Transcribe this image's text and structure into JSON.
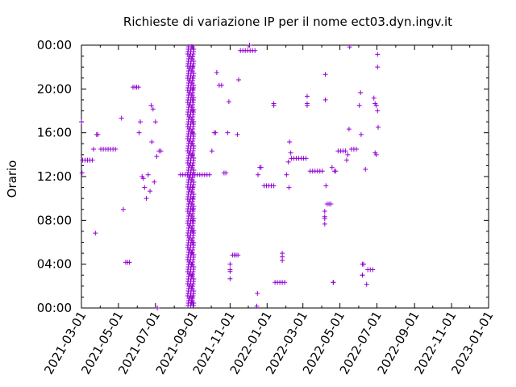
{
  "chart_data": {
    "type": "scatter",
    "title": "Richieste di variazione IP per il nome ect03.dyn.ingv.it",
    "xlabel": "",
    "ylabel": "Orario",
    "x_type": "date",
    "xlim": [
      "2021-03-01",
      "2023-01-01"
    ],
    "ylim": [
      "00:00",
      "24:00"
    ],
    "x_ticks": [
      "2021-03-01",
      "2021-05-01",
      "2021-07-01",
      "2021-09-01",
      "2021-11-01",
      "2022-01-01",
      "2022-03-01",
      "2022-05-01",
      "2022-07-01",
      "2022-09-01",
      "2022-11-01",
      "2023-01-01"
    ],
    "y_ticks": [
      "00:00",
      "04:00",
      "08:00",
      "12:00",
      "16:00",
      "20:00",
      "00:00"
    ],
    "grid": false,
    "legend": "none",
    "marker": "+",
    "colors": {
      "points": "#9400d3",
      "axes": "#000000",
      "background": "#ffffff"
    },
    "points": [
      [
        "2021-03-01",
        "17:00"
      ],
      [
        "2021-03-02",
        "12:20"
      ],
      [
        "2021-03-03",
        "13:30"
      ],
      [
        "2021-03-07",
        "13:30"
      ],
      [
        "2021-03-11",
        "13:30"
      ],
      [
        "2021-03-15",
        "13:30"
      ],
      [
        "2021-03-19",
        "13:30"
      ],
      [
        "2021-03-21",
        "14:30"
      ],
      [
        "2021-03-24",
        "06:50"
      ],
      [
        "2021-03-26",
        "15:50"
      ],
      [
        "2021-03-28",
        "15:50"
      ],
      [
        "2021-04-02",
        "14:30"
      ],
      [
        "2021-04-06",
        "14:30"
      ],
      [
        "2021-04-10",
        "14:30"
      ],
      [
        "2021-04-14",
        "14:30"
      ],
      [
        "2021-04-18",
        "14:30"
      ],
      [
        "2021-04-22",
        "14:30"
      ],
      [
        "2021-04-26",
        "14:30"
      ],
      [
        "2021-05-06",
        "17:20"
      ],
      [
        "2021-05-09",
        "09:00"
      ],
      [
        "2021-05-13",
        "04:10"
      ],
      [
        "2021-05-16",
        "04:10"
      ],
      [
        "2021-05-19",
        "04:10"
      ],
      [
        "2021-05-25",
        "20:10"
      ],
      [
        "2021-05-28",
        "20:10"
      ],
      [
        "2021-05-31",
        "20:10"
      ],
      [
        "2021-06-03",
        "20:10"
      ],
      [
        "2021-06-04",
        "16:00"
      ],
      [
        "2021-06-06",
        "17:00"
      ],
      [
        "2021-06-09",
        "12:00"
      ],
      [
        "2021-06-11",
        "11:50"
      ],
      [
        "2021-06-13",
        "11:00"
      ],
      [
        "2021-06-16",
        "10:00"
      ],
      [
        "2021-06-19",
        "12:10"
      ],
      [
        "2021-06-22",
        "10:40"
      ],
      [
        "2021-06-24",
        "17:90"
      ],
      [
        "2021-06-25",
        "14:70"
      ],
      [
        "2021-06-27",
        "17:70"
      ],
      [
        "2021-06-29",
        "11:30"
      ],
      [
        "2021-07-01",
        "17:00"
      ],
      [
        "2021-07-03",
        "13:50"
      ],
      [
        "2021-07-04",
        "00:00"
      ],
      [
        "2021-07-07",
        "14:20"
      ],
      [
        "2021-07-10",
        "14:20"
      ],
      [
        "2021-08-11",
        "11:70"
      ],
      [
        "2021-08-15",
        "11:70"
      ],
      [
        "2021-08-19",
        "11:70"
      ],
      [
        "2021-08-23",
        "11:70"
      ],
      [
        "2021-08-27",
        "11:70"
      ],
      [
        "2021-08-31",
        "11:70"
      ],
      [
        "2021-09-04",
        "11:70"
      ],
      [
        "2021-09-08",
        "11:70"
      ],
      [
        "2021-09-12",
        "11:70"
      ],
      [
        "2021-09-16",
        "11:70"
      ],
      [
        "2021-09-20",
        "11:70"
      ],
      [
        "2021-09-24",
        "11:70"
      ],
      [
        "2021-09-28",
        "11:70"
      ],
      [
        "2021-10-02",
        "14:20"
      ],
      [
        "2021-10-06",
        "16:00"
      ],
      [
        "2021-10-08",
        "16:00"
      ],
      [
        "2021-10-10",
        "21:30"
      ],
      [
        "2021-10-14",
        "20:20"
      ],
      [
        "2021-10-18",
        "20:20"
      ],
      [
        "2021-10-22",
        "11:80"
      ],
      [
        "2021-10-25",
        "11:80"
      ],
      [
        "2021-10-28",
        "15:60"
      ],
      [
        "2021-10-30",
        "18:50"
      ],
      [
        "2021-11-05",
        "04:50"
      ],
      [
        "2021-11-08",
        "04:50"
      ],
      [
        "2021-11-11",
        "04:50"
      ],
      [
        "2021-11-14",
        "04:50"
      ],
      [
        "2021-11-01",
        "04:00"
      ],
      [
        "2021-11-01",
        "03:30"
      ],
      [
        "2021-11-01",
        "02:80"
      ],
      [
        "2021-11-01",
        "02:40"
      ],
      [
        "2021-11-13",
        "15:50"
      ],
      [
        "2021-11-15",
        "20:50"
      ],
      [
        "2021-11-18",
        "22:90"
      ],
      [
        "2021-11-22",
        "22:90"
      ],
      [
        "2021-11-26",
        "22:90"
      ],
      [
        "2021-11-30",
        "22:90"
      ],
      [
        "2021-12-04",
        "22:90"
      ],
      [
        "2021-12-08",
        "22:90"
      ],
      [
        "2021-12-12",
        "22:90"
      ],
      [
        "2021-12-03",
        "23:60"
      ],
      [
        "2021-12-16",
        "01:20"
      ],
      [
        "2021-12-15",
        "00:10"
      ],
      [
        "2021-12-17",
        "12:10"
      ],
      [
        "2021-12-20",
        "12:50"
      ],
      [
        "2021-12-22",
        "12:50"
      ],
      [
        "2021-12-27",
        "11:10"
      ],
      [
        "2021-12-31",
        "11:10"
      ],
      [
        "2022-01-04",
        "11:10"
      ],
      [
        "2022-01-08",
        "11:10"
      ],
      [
        "2022-01-12",
        "11:10"
      ],
      [
        "2022-01-12",
        "18:40"
      ],
      [
        "2022-01-12",
        "17:90"
      ],
      [
        "2022-01-14",
        "02:20"
      ],
      [
        "2022-01-18",
        "02:20"
      ],
      [
        "2022-01-22",
        "02:20"
      ],
      [
        "2022-01-26",
        "02:20"
      ],
      [
        "2022-01-30",
        "02:20"
      ],
      [
        "2022-01-26",
        "05:00"
      ],
      [
        "2022-01-26",
        "04:40"
      ],
      [
        "2022-01-26",
        "03:80"
      ],
      [
        "2022-02-02",
        "11:70"
      ],
      [
        "2022-02-05",
        "12:80"
      ],
      [
        "2022-02-06",
        "10:60"
      ],
      [
        "2022-02-07",
        "15:10"
      ],
      [
        "2022-02-09",
        "14:10"
      ],
      [
        "2022-02-10",
        "13:40"
      ],
      [
        "2022-02-14",
        "13:40"
      ],
      [
        "2022-02-18",
        "13:40"
      ],
      [
        "2022-02-22",
        "13:40"
      ],
      [
        "2022-02-26",
        "13:40"
      ],
      [
        "2022-03-02",
        "13:40"
      ],
      [
        "2022-03-06",
        "13:40"
      ],
      [
        "2022-03-08",
        "18:80"
      ],
      [
        "2022-03-08",
        "18:40"
      ],
      [
        "2022-03-08",
        "17:90"
      ],
      [
        "2022-03-13",
        "12:30"
      ],
      [
        "2022-03-17",
        "12:30"
      ],
      [
        "2022-03-21",
        "12:30"
      ],
      [
        "2022-03-25",
        "12:30"
      ],
      [
        "2022-03-29",
        "12:30"
      ],
      [
        "2022-04-02",
        "12:30"
      ],
      [
        "2022-04-06",
        "08:50"
      ],
      [
        "2022-04-06",
        "08:10"
      ],
      [
        "2022-04-06",
        "07:80"
      ],
      [
        "2022-04-06",
        "07:40"
      ],
      [
        "2022-04-07",
        "21:20"
      ],
      [
        "2022-04-07",
        "19:00"
      ],
      [
        "2022-04-08",
        "10:70"
      ],
      [
        "2022-04-10",
        "08:90"
      ],
      [
        "2022-04-13",
        "08:90"
      ],
      [
        "2022-04-16",
        "08:90"
      ],
      [
        "2022-04-18",
        "12:50"
      ],
      [
        "2022-04-20",
        "02:20"
      ],
      [
        "2022-04-20",
        "01:80"
      ],
      [
        "2022-04-22",
        "11:90"
      ],
      [
        "2022-04-24",
        "11:90"
      ],
      [
        "2022-04-28",
        "14:20"
      ],
      [
        "2022-05-02",
        "14:20"
      ],
      [
        "2022-05-06",
        "14:20"
      ],
      [
        "2022-05-10",
        "14:20"
      ],
      [
        "2022-05-12",
        "13:30"
      ],
      [
        "2022-05-14",
        "13:60"
      ],
      [
        "2022-05-16",
        "16:20"
      ],
      [
        "2022-05-17",
        "23:50"
      ],
      [
        "2022-05-20",
        "13:90"
      ],
      [
        "2022-05-24",
        "13:90"
      ],
      [
        "2022-05-28",
        "13:90"
      ],
      [
        "2022-06-02",
        "17:90"
      ],
      [
        "2022-06-04",
        "19:40"
      ],
      [
        "2022-06-05",
        "15:50"
      ],
      [
        "2022-06-07",
        "03:60"
      ],
      [
        "2022-06-09",
        "03:60"
      ],
      [
        "2022-06-07",
        "03:00"
      ],
      [
        "2022-06-07",
        "02:60"
      ],
      [
        "2022-06-12",
        "12:40"
      ],
      [
        "2022-06-14",
        "01:70"
      ],
      [
        "2022-06-16",
        "02:90"
      ],
      [
        "2022-06-20",
        "02:90"
      ],
      [
        "2022-06-24",
        "02:90"
      ],
      [
        "2022-06-26",
        "18:70"
      ],
      [
        "2022-06-28",
        "18:40"
      ],
      [
        "2022-06-30",
        "17:90"
      ],
      [
        "2022-06-28",
        "14:10"
      ],
      [
        "2022-06-30",
        "14:00"
      ],
      [
        "2022-07-03",
        "16:30"
      ],
      [
        "2022-07-02",
        "18:00"
      ],
      [
        "2022-07-02",
        "22:70"
      ],
      [
        "2022-07-02",
        "21:60"
      ],
      [
        "2021-08-31",
        "06:00"
      ],
      [
        "2021-08-31",
        "07:00"
      ],
      [
        "2021-08-31",
        "08:00"
      ],
      [
        "2021-08-31",
        "09:00"
      ],
      [
        "2021-08-31",
        "10:00"
      ],
      [
        "2021-08-31",
        "11:00"
      ],
      [
        "2021-08-31",
        "13:00"
      ],
      [
        "2021-08-31",
        "14:00"
      ],
      [
        "2021-08-31",
        "15:00"
      ],
      [
        "2021-08-31",
        "16:00"
      ],
      [
        "2021-08-31",
        "17:00"
      ],
      [
        "2021-08-31",
        "18:00"
      ],
      [
        "2021-08-31",
        "19:00"
      ],
      [
        "2021-08-31",
        "20:00"
      ],
      [
        "2021-08-31",
        "21:00"
      ],
      [
        "2021-08-31",
        "22:00"
      ],
      [
        "2021-08-31",
        "23:00"
      ],
      [
        "2021-08-30",
        "00:30"
      ],
      [
        "2021-08-30",
        "01:00"
      ],
      [
        "2021-08-30",
        "02:00"
      ],
      [
        "2021-08-30",
        "03:00"
      ],
      [
        "2021-08-30",
        "04:00"
      ],
      [
        "2021-08-30",
        "05:00"
      ]
    ],
    "dense_band": {
      "x_from": "2021-08-24",
      "x_to": "2021-09-01",
      "y_from": "00:00",
      "y_to": "24:00",
      "note_count": 1
    }
  }
}
